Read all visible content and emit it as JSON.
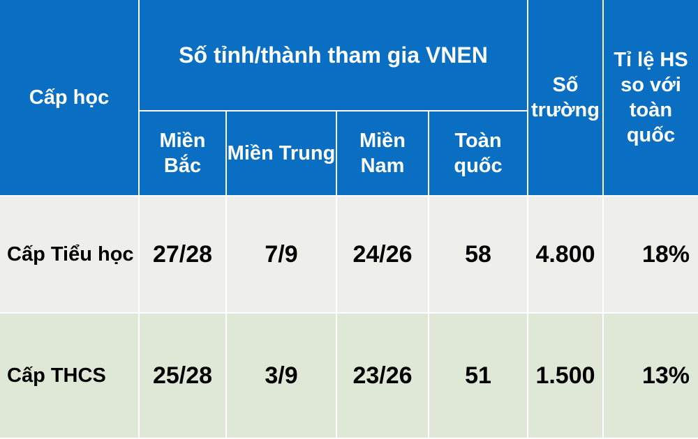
{
  "header": {
    "level": "Cấp học",
    "group": "Số tỉnh/thành tham gia VNEN",
    "subcolumns": [
      "Miền\nBắc",
      "Miền Trung",
      "Miền\nNam",
      "Toàn\nquốc"
    ],
    "schools": "Số\ntrường",
    "ratio": "Tỉ lệ HS\nso với\ntoàn\nquốc"
  },
  "table": {
    "rows": [
      [
        "Cấp Tiểu học",
        "27/28",
        "7/9",
        "24/26",
        "58",
        "4.800",
        "18%"
      ],
      [
        "Cấp THCS",
        "25/28",
        "3/9",
        "23/26",
        "51",
        "1.500",
        "13%"
      ]
    ]
  }
}
